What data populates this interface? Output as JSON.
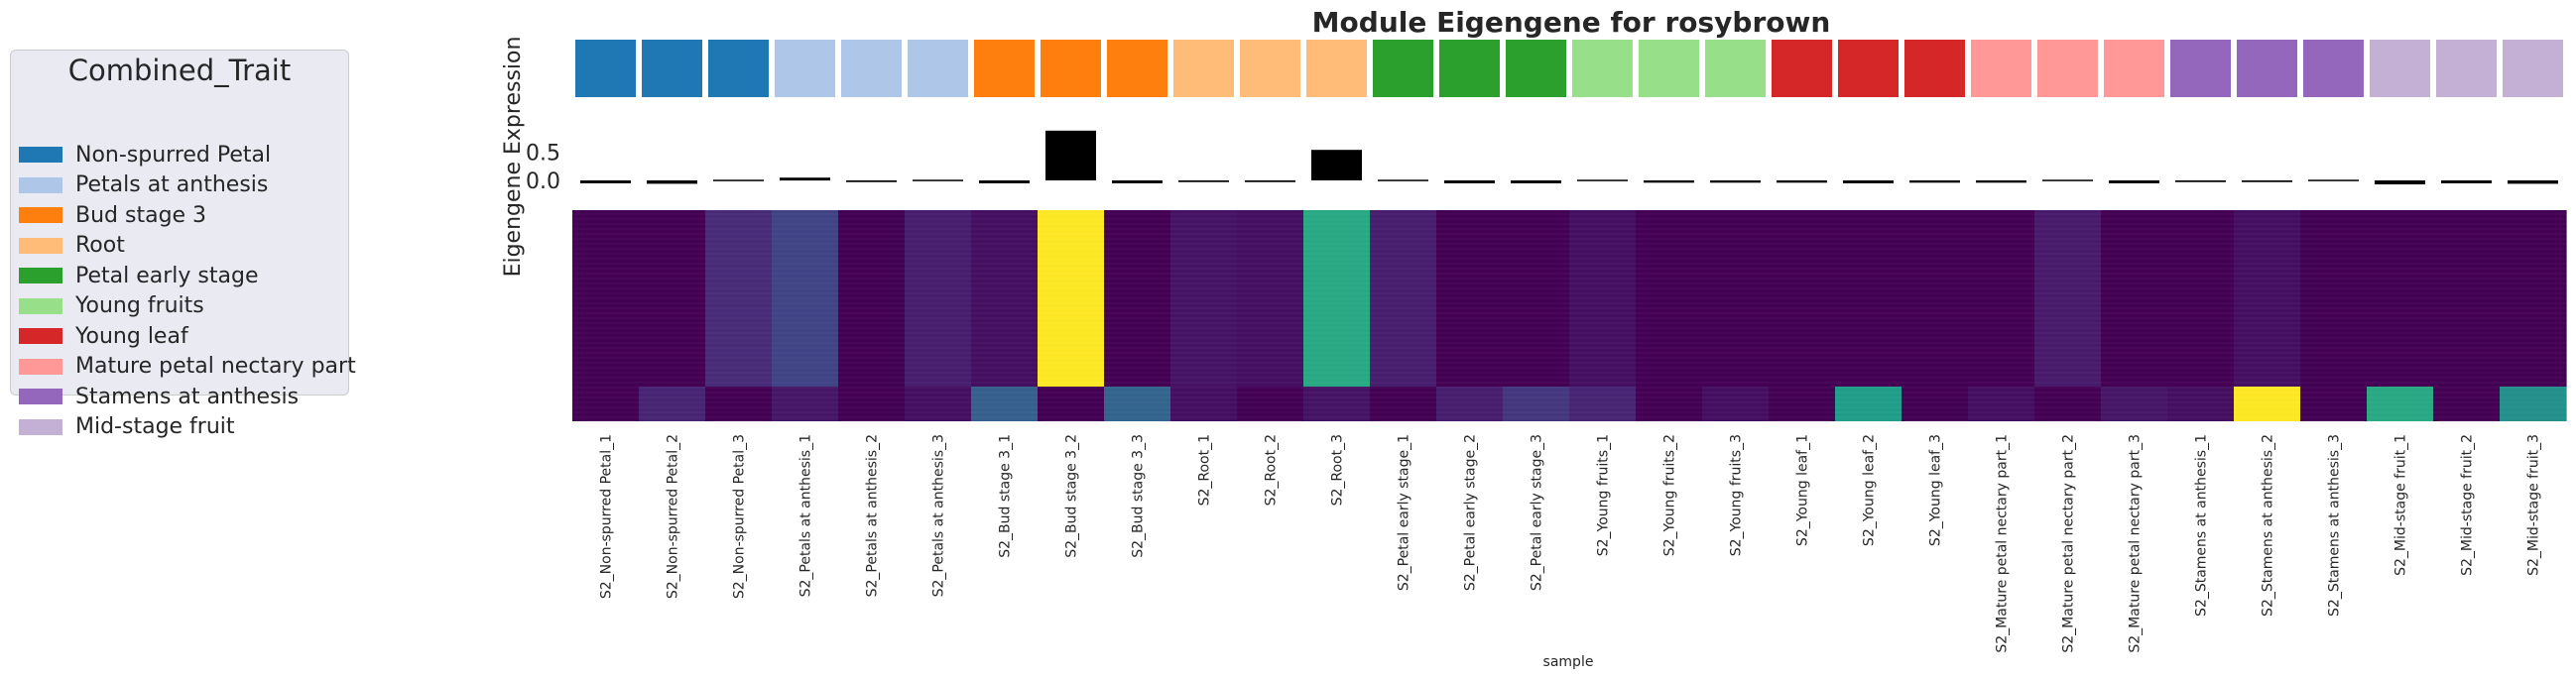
{
  "chart_data": {
    "type": "heatmap",
    "title": "Module Eigengene for rosybrown",
    "xlabel": "sample",
    "ylabel": "Eigengene Expression",
    "legend_title": "Combined_Trait",
    "legend_position": "left",
    "trait_order": [
      "Non-spurred Petal",
      "Petals at anthesis",
      "Bud stage 3",
      "Root",
      "Petal early stage",
      "Young fruits",
      "Young leaf",
      "Mature petal nectary part",
      "Stamens at anthesis",
      "Mid-stage fruit"
    ],
    "trait_colors": [
      "#1f77b4",
      "#aec7e8",
      "#ff7f0e",
      "#ffbb78",
      "#2ca02c",
      "#98df8a",
      "#d62728",
      "#ff9896",
      "#9467bd",
      "#c5b0d5"
    ],
    "samples": [
      "S2_Non-spurred Petal_1",
      "S2_Non-spurred Petal_2",
      "S2_Non-spurred Petal_3",
      "S2_Petals at anthesis_1",
      "S2_Petals at anthesis_2",
      "S2_Petals at anthesis_3",
      "S2_Bud stage 3_1",
      "S2_Bud stage 3_2",
      "S2_Bud stage 3_3",
      "S2_Root_1",
      "S2_Root_2",
      "S2_Root_3",
      "S2_Petal early stage_1",
      "S2_Petal early stage_2",
      "S2_Petal early stage_3",
      "S2_Young fruits_1",
      "S2_Young fruits_2",
      "S2_Young fruits_3",
      "S2_Young leaf_1",
      "S2_Young leaf_2",
      "S2_Young leaf_3",
      "S2_Mature petal nectary part_1",
      "S2_Mature petal nectary part_2",
      "S2_Mature petal nectary part_3",
      "S2_Stamens at anthesis_1",
      "S2_Stamens at anthesis_2",
      "S2_Stamens at anthesis_3",
      "S2_Mid-stage fruit_1",
      "S2_Mid-stage fruit_2",
      "S2_Mid-stage fruit_3"
    ],
    "sample_trait_index": [
      0,
      0,
      0,
      1,
      1,
      1,
      2,
      2,
      2,
      3,
      3,
      3,
      4,
      4,
      4,
      5,
      5,
      5,
      6,
      6,
      6,
      7,
      7,
      7,
      8,
      8,
      8,
      9,
      9,
      9
    ],
    "eigengene_values": [
      -0.05,
      -0.06,
      0.0,
      0.05,
      -0.03,
      0.01,
      -0.05,
      0.88,
      -0.05,
      -0.03,
      -0.03,
      0.54,
      0.01,
      -0.05,
      -0.05,
      -0.02,
      -0.04,
      -0.04,
      -0.04,
      -0.05,
      -0.04,
      -0.04,
      0.0,
      -0.05,
      -0.03,
      -0.03,
      -0.01,
      -0.07,
      -0.05,
      -0.06
    ],
    "eigengene_yticks": [
      "0.0",
      "0.5"
    ],
    "eigengene_ylim": [
      -0.1,
      0.95
    ],
    "heatmap_upper_intensity": [
      0.0,
      0.0,
      0.12,
      0.2,
      0.0,
      0.08,
      0.04,
      1.0,
      0.0,
      0.05,
      0.04,
      0.6,
      0.08,
      0.0,
      0.0,
      0.04,
      0.0,
      0.0,
      0.0,
      0.0,
      0.0,
      0.0,
      0.07,
      0.0,
      0.0,
      0.04,
      0.0,
      0.0,
      0.0,
      0.0
    ],
    "heatmap_lower_intensity": [
      0.0,
      0.1,
      0.0,
      0.06,
      0.0,
      0.04,
      0.3,
      0.0,
      0.32,
      0.04,
      0.0,
      0.05,
      0.0,
      0.08,
      0.16,
      0.1,
      0.0,
      0.04,
      0.0,
      0.55,
      0.0,
      0.04,
      0.0,
      0.06,
      0.04,
      1.0,
      0.0,
      0.6,
      0.0,
      0.5
    ]
  }
}
